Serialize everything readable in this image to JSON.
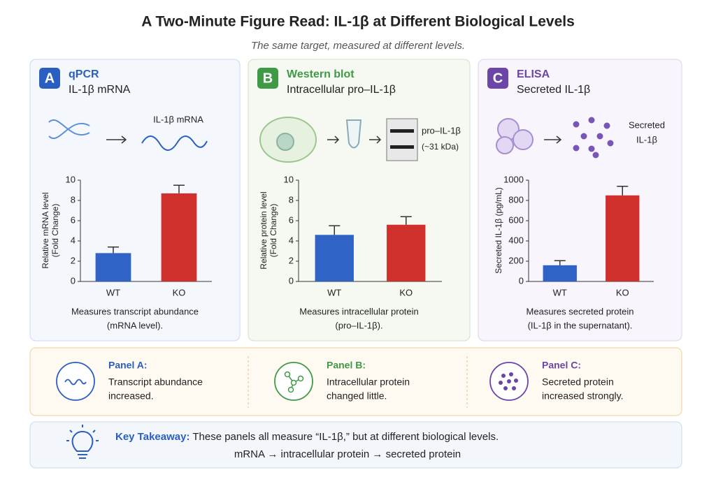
{
  "title": "A Two-Minute Figure Read: IL-1β at Different Biological Levels",
  "subtitle": "The same target, measured at different levels.",
  "panels": [
    {
      "letter": "A",
      "method": "qPCR",
      "target": "IL-1β mRNA",
      "icon_labels": [
        "IL-1β mRNA"
      ],
      "caption": [
        "Measures transcript abundance",
        "(mRNA level)."
      ]
    },
    {
      "letter": "B",
      "method": "Western blot",
      "target": "Intracellular pro–IL-1β",
      "icon_labels": [
        "pro–IL-1β",
        "(~31 kDa)"
      ],
      "caption": [
        "Measures intracellular protein",
        "(pro–IL-1β)."
      ]
    },
    {
      "letter": "C",
      "method": "ELISA",
      "target": "Secreted IL-1β",
      "icon_labels": [
        "Secreted",
        "IL-1β"
      ],
      "caption": [
        "Measures secreted protein",
        "(IL-1β in the supernatant)."
      ]
    }
  ],
  "chart_data": [
    {
      "type": "bar",
      "ylabel": [
        "Relative mRNA level",
        "(Fold Change)"
      ],
      "categories": [
        "WT",
        "KO"
      ],
      "values": [
        2.8,
        8.7
      ],
      "errors": [
        0.6,
        0.8
      ],
      "colors": [
        "#2f63c6",
        "#cf302c"
      ],
      "ylim": [
        0,
        10
      ],
      "yticks": [
        0,
        2,
        4,
        6,
        8,
        10
      ]
    },
    {
      "type": "bar",
      "ylabel": [
        "Relative protein level",
        "(Fold Change)"
      ],
      "categories": [
        "WT",
        "KO"
      ],
      "values": [
        4.6,
        5.6
      ],
      "errors": [
        0.9,
        0.8
      ],
      "colors": [
        "#2f63c6",
        "#cf302c"
      ],
      "ylim": [
        0,
        10
      ],
      "yticks": [
        0,
        2,
        4,
        6,
        8,
        10
      ]
    },
    {
      "type": "bar",
      "ylabel": [
        "Secreted IL-1β (pg/mL)"
      ],
      "categories": [
        "WT",
        "KO"
      ],
      "values": [
        160,
        850
      ],
      "errors": [
        45,
        90
      ],
      "colors": [
        "#2f63c6",
        "#cf302c"
      ],
      "ylim": [
        0,
        1000
      ],
      "yticks": [
        0,
        200,
        400,
        600,
        800,
        1000
      ]
    }
  ],
  "summary": [
    {
      "label": "Panel A:",
      "lines": [
        "Transcript abundance",
        "increased."
      ]
    },
    {
      "label": "Panel B:",
      "lines": [
        "Intracellular protein",
        "changed little."
      ]
    },
    {
      "label": "Panel C:",
      "lines": [
        "Secreted protein",
        "increased strongly."
      ]
    }
  ],
  "takeaway": {
    "label": "Key Takeaway:",
    "text": "These panels all measure “IL-1β,” but at different biological levels.",
    "flow": "mRNA → intracellular protein → secreted protein"
  }
}
